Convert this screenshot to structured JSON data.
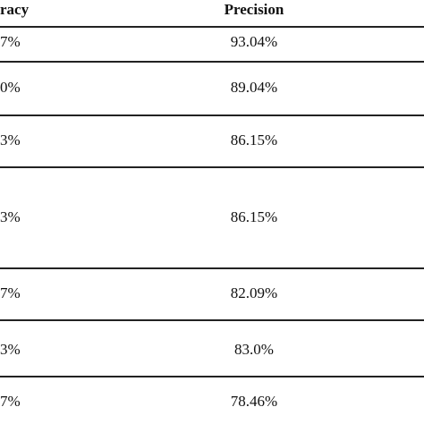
{
  "table": {
    "headers": [
      "racy",
      "Precision"
    ],
    "rows": [
      {
        "col1": "7%",
        "col2": "93.04%"
      },
      {
        "col1": "0%",
        "col2": "89.04%"
      },
      {
        "col1": "3%",
        "col2": "86.15%"
      },
      {
        "col1": "3%",
        "col2": "86.15%"
      },
      {
        "col1": "7%",
        "col2": "82.09%"
      },
      {
        "col1": "3%",
        "col2": "83.0%"
      },
      {
        "col1": "7%",
        "col2": "78.46%"
      }
    ]
  }
}
